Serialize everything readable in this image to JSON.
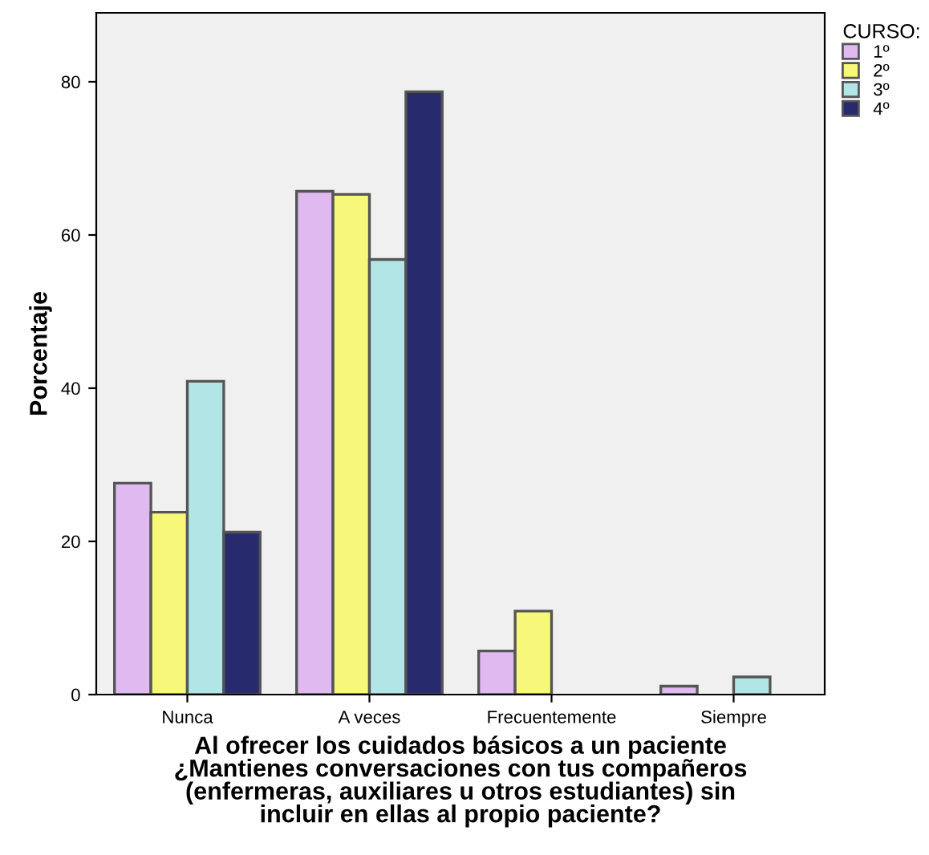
{
  "chart_data": {
    "type": "bar",
    "xlabel": "Al ofrecer los cuidados básicos a un paciente\n¿Mantienes conversaciones con tus compañeros\n(enfermeras, auxiliares u otros estudiantes) sin\nincluir en ellas al propio paciente?",
    "ylabel": "Porcentaje",
    "legend_title": "CURSO:",
    "categories": [
      "Nunca",
      "A veces",
      "Frecuentemente",
      "Siempre"
    ],
    "series": [
      {
        "name": "1º",
        "color": "#dfb9f0",
        "values": [
          27.6,
          65.7,
          5.7,
          1.1
        ]
      },
      {
        "name": "2º",
        "color": "#f7f77a",
        "values": [
          23.8,
          65.3,
          10.9,
          null
        ]
      },
      {
        "name": "3º",
        "color": "#b2e6e6",
        "values": [
          40.9,
          56.8,
          null,
          2.3
        ]
      },
      {
        "name": "4º",
        "color": "#282a6e",
        "values": [
          21.2,
          78.7,
          null,
          null
        ]
      }
    ],
    "ylim": [
      0,
      89
    ],
    "yticks": [
      0,
      20,
      40,
      60,
      80
    ],
    "grid": false,
    "legend": "top right"
  }
}
